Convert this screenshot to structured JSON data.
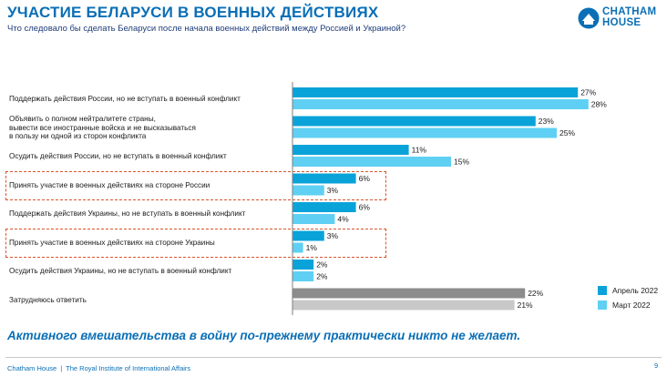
{
  "header": {
    "title": "УЧАСТИЕ БЕЛАРУСИ В ВОЕННЫХ ДЕЙСТВИЯХ",
    "subtitle": "Что следовало бы сделать Беларуси после начала военных действий между Россией и Украиной?"
  },
  "logo": {
    "line1": "CHATHAM",
    "line2": "HOUSE",
    "icon": "chatham-house-logo"
  },
  "chart_data": {
    "type": "bar",
    "orientation": "horizontal",
    "categories": [
      "Поддержать действия России, но не вступать в военный конфликт",
      "Объявить о полном нейтралитете страны,\nвывести все иностранные войска и не высказываться\nв пользу ни одной из сторон конфликта",
      "Осудить действия России, но не вступать в военный конфликт",
      "Принять участие в военных действиях на стороне России",
      "Поддержать действия Украины, но не вступать в военный конфликт",
      "Принять участие в военных действиях на стороне Украины",
      "Осудить действия Украины, но не вступать в военный конфликт",
      "Затрудняюсь ответить"
    ],
    "series": [
      {
        "name": "Апрель 2022",
        "values": [
          27,
          23,
          11,
          6,
          6,
          3,
          2,
          22
        ],
        "color": "#0aa3d9",
        "last_color": "#8c8c8c"
      },
      {
        "name": "Март 2022",
        "values": [
          28,
          25,
          15,
          3,
          4,
          1,
          2,
          21
        ],
        "color": "#5fd0f3",
        "last_color": "#c8c8c8"
      }
    ],
    "value_suffix": "%",
    "highlighted_categories": [
      3,
      5
    ],
    "highlight_color": "#d9552b",
    "xlim": [
      0,
      30
    ],
    "legend_position": "bottom-right",
    "grid": false
  },
  "takeaway": "Активного вмешательства в войну по-прежнему практически никто не желает.",
  "footer": {
    "org": "Chatham House",
    "separator": "|",
    "institute": "The Royal Institute of International Affairs",
    "page": "9"
  },
  "colors": {
    "accent": "#0a6fb6"
  }
}
